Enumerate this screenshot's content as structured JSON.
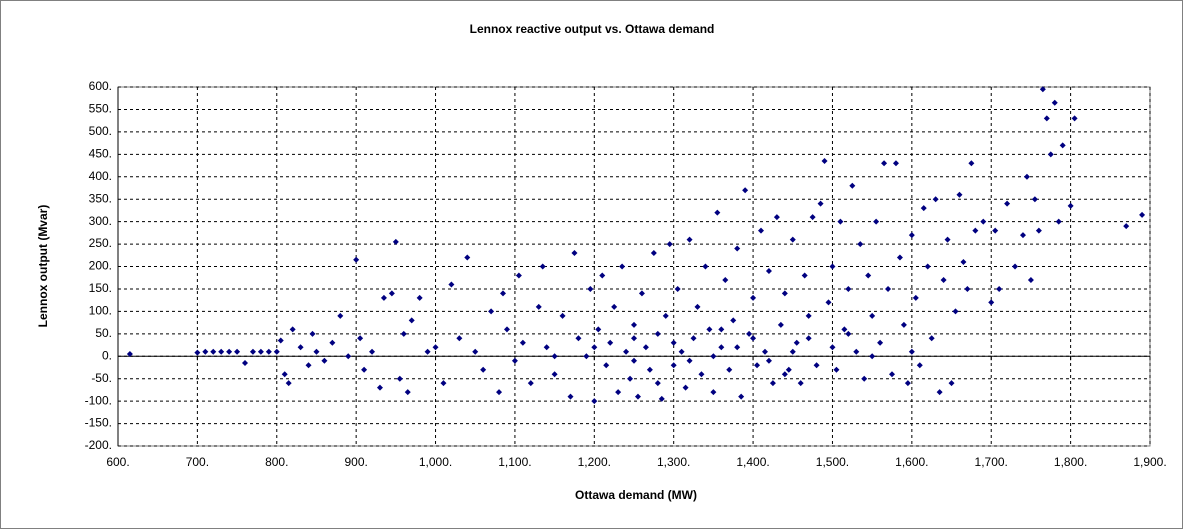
{
  "chart_data": {
    "type": "scatter",
    "title": "Lennox reactive output vs. Ottawa demand",
    "xlabel": "Ottawa demand (MW)",
    "ylabel": "Lennox output (Mvar)",
    "color": "#000080",
    "grid": true,
    "xlim": [
      600,
      1900
    ],
    "ylim": [
      -200,
      600
    ],
    "xticks": [
      {
        "value": 600,
        "label": "600."
      },
      {
        "value": 700,
        "label": "700."
      },
      {
        "value": 800,
        "label": "800."
      },
      {
        "value": 900,
        "label": "900."
      },
      {
        "value": 1000,
        "label": "1,000."
      },
      {
        "value": 1100,
        "label": "1,100."
      },
      {
        "value": 1200,
        "label": "1,200."
      },
      {
        "value": 1300,
        "label": "1,300."
      },
      {
        "value": 1400,
        "label": "1,400."
      },
      {
        "value": 1500,
        "label": "1,500."
      },
      {
        "value": 1600,
        "label": "1,600."
      },
      {
        "value": 1700,
        "label": "1,700."
      },
      {
        "value": 1800,
        "label": "1,800."
      },
      {
        "value": 1900,
        "label": "1,900."
      }
    ],
    "yticks": [
      {
        "value": 600,
        "label": "600."
      },
      {
        "value": 550,
        "label": "550."
      },
      {
        "value": 500,
        "label": "500."
      },
      {
        "value": 450,
        "label": "450."
      },
      {
        "value": 400,
        "label": "400."
      },
      {
        "value": 350,
        "label": "350."
      },
      {
        "value": 300,
        "label": "300."
      },
      {
        "value": 250,
        "label": "250."
      },
      {
        "value": 200,
        "label": "200."
      },
      {
        "value": 150,
        "label": "150."
      },
      {
        "value": 100,
        "label": "100."
      },
      {
        "value": 50,
        "label": "50."
      },
      {
        "value": 0,
        "label": "0."
      },
      {
        "value": -50,
        "label": "-50."
      },
      {
        "value": -100,
        "label": "-100."
      },
      {
        "value": -150,
        "label": "-150."
      },
      {
        "value": -200,
        "label": "-200."
      }
    ],
    "x": [
      615,
      700,
      710,
      720,
      730,
      740,
      750,
      760,
      770,
      780,
      790,
      800,
      805,
      810,
      815,
      820,
      830,
      840,
      845,
      850,
      860,
      870,
      880,
      890,
      900,
      905,
      910,
      920,
      930,
      935,
      945,
      950,
      955,
      960,
      965,
      970,
      980,
      990,
      1000,
      1010,
      1020,
      1030,
      1040,
      1050,
      1060,
      1070,
      1080,
      1085,
      1090,
      1100,
      1105,
      1110,
      1120,
      1130,
      1135,
      1140,
      1150,
      1160,
      1170,
      1175,
      1180,
      1190,
      1195,
      1200,
      1205,
      1210,
      1215,
      1220,
      1225,
      1230,
      1235,
      1240,
      1245,
      1250,
      1255,
      1260,
      1265,
      1270,
      1275,
      1280,
      1285,
      1290,
      1295,
      1300,
      1305,
      1310,
      1315,
      1320,
      1325,
      1330,
      1335,
      1340,
      1345,
      1350,
      1355,
      1360,
      1365,
      1370,
      1375,
      1380,
      1385,
      1390,
      1395,
      1400,
      1405,
      1410,
      1415,
      1420,
      1425,
      1430,
      1435,
      1440,
      1445,
      1450,
      1455,
      1460,
      1465,
      1470,
      1475,
      1480,
      1485,
      1490,
      1495,
      1500,
      1505,
      1510,
      1515,
      1520,
      1525,
      1530,
      1535,
      1540,
      1545,
      1550,
      1555,
      1560,
      1565,
      1570,
      1575,
      1580,
      1585,
      1590,
      1595,
      1600,
      1605,
      1610,
      1615,
      1620,
      1625,
      1630,
      1635,
      1640,
      1645,
      1650,
      1655,
      1660,
      1665,
      1670,
      1675,
      1680,
      1690,
      1700,
      1705,
      1710,
      1720,
      1730,
      1740,
      1745,
      1750,
      1755,
      1760,
      1765,
      1770,
      1775,
      1780,
      1785,
      1790,
      1800,
      1805,
      1870,
      1890,
      1150,
      1200,
      1250,
      1300,
      1350,
      1400,
      1450,
      1500,
      1550,
      1600,
      1250,
      1320,
      1380,
      1420,
      1470,
      1360,
      1440,
      1280,
      1520
    ],
    "values": [
      5,
      8,
      10,
      10,
      10,
      10,
      10,
      -15,
      10,
      10,
      10,
      10,
      35,
      -40,
      -60,
      60,
      20,
      -20,
      50,
      10,
      -10,
      30,
      90,
      0,
      215,
      40,
      -30,
      10,
      -70,
      130,
      140,
      255,
      -50,
      50,
      -80,
      80,
      130,
      10,
      20,
      -60,
      160,
      40,
      220,
      10,
      -30,
      100,
      -80,
      140,
      60,
      -10,
      180,
      30,
      -60,
      110,
      200,
      20,
      -40,
      90,
      -90,
      230,
      40,
      0,
      150,
      -100,
      60,
      180,
      -20,
      30,
      110,
      -80,
      200,
      10,
      -50,
      70,
      -90,
      140,
      20,
      -30,
      230,
      50,
      -95,
      90,
      250,
      -20,
      150,
      10,
      -70,
      260,
      40,
      110,
      -40,
      200,
      60,
      -80,
      320,
      20,
      170,
      -30,
      80,
      240,
      -90,
      370,
      50,
      130,
      -20,
      280,
      10,
      190,
      -60,
      310,
      70,
      140,
      -30,
      260,
      30,
      -60,
      180,
      90,
      310,
      -20,
      340,
      435,
      120,
      200,
      -30,
      300,
      60,
      150,
      380,
      10,
      250,
      -50,
      180,
      90,
      300,
      30,
      430,
      150,
      -40,
      430,
      220,
      70,
      -60,
      270,
      130,
      -20,
      330,
      200,
      40,
      350,
      -80,
      170,
      260,
      -60,
      100,
      360,
      210,
      150,
      430,
      280,
      300,
      120,
      280,
      150,
      340,
      200,
      270,
      400,
      170,
      350,
      280,
      595,
      530,
      450,
      565,
      300,
      470,
      335,
      530,
      290,
      315,
      0,
      20,
      -10,
      30,
      0,
      40,
      10,
      20,
      0,
      10,
      40,
      -10,
      20,
      -10,
      40,
      60,
      -40,
      -60,
      50
    ]
  }
}
